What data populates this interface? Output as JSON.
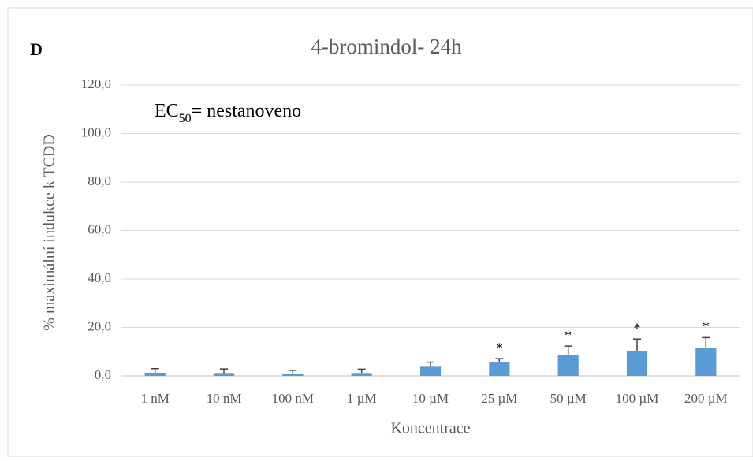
{
  "chart_data": {
    "type": "bar",
    "panel_label": "D",
    "title": "4-bromindol- 24h",
    "annotation": {
      "main": "EC",
      "subscript": "50",
      "rest": "= nestanoveno"
    },
    "y_label": "% maximální indukce k TCDD",
    "x_label": "Koncentrace",
    "categories": [
      "1 nM",
      "10 nM",
      "100 nM",
      "1 µM",
      "10 µM",
      "25 µM",
      "50 µM",
      "100 µM",
      "200 µM"
    ],
    "values": [
      1.3,
      1.2,
      0.8,
      1.2,
      3.8,
      5.8,
      8.5,
      10.2,
      11.4
    ],
    "errors": [
      1.7,
      1.7,
      1.5,
      1.6,
      1.9,
      1.3,
      3.8,
      5.0,
      4.4
    ],
    "significance": [
      null,
      null,
      null,
      null,
      null,
      "*",
      "*",
      "*",
      "*"
    ],
    "color": "#5b9bd5",
    "ylim": [
      0,
      120
    ],
    "yticks": [
      {
        "value": 0,
        "label": "0,0"
      },
      {
        "value": 20,
        "label": "20,0"
      },
      {
        "value": 40,
        "label": "40,0"
      },
      {
        "value": 60,
        "label": "60,0"
      },
      {
        "value": 80,
        "label": "80,0"
      },
      {
        "value": 100,
        "label": "100,0"
      },
      {
        "value": 120,
        "label": "120,0"
      }
    ],
    "grid": true
  }
}
